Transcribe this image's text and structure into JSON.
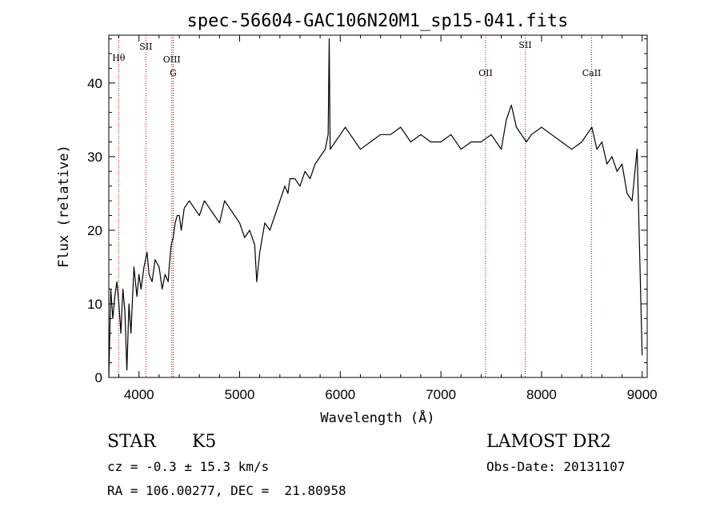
{
  "chart_data": {
    "type": "line",
    "title": "spec-56604-GAC106N20M1_sp15-041.fits",
    "xlabel": "Wavelength (Å)",
    "ylabel": "Flux (relative)",
    "xlim": [
      3700,
      9050
    ],
    "ylim": [
      0,
      46.5
    ],
    "xticks": [
      4000,
      5000,
      6000,
      7000,
      8000,
      9000
    ],
    "yticks": [
      0,
      10,
      20,
      30,
      40
    ],
    "grid": false,
    "series_color": "#000000",
    "line_marker_color": "#c00000",
    "series": [
      {
        "x": [
          3700,
          3720,
          3740,
          3760,
          3780,
          3800,
          3820,
          3840,
          3860,
          3880,
          3900,
          3920,
          3950,
          3980,
          4000,
          4020,
          4050,
          4080,
          4100,
          4130,
          4160,
          4200,
          4230,
          4260,
          4290,
          4300,
          4320,
          4340,
          4360,
          4380,
          4400,
          4420,
          4450,
          4500,
          4550,
          4600,
          4650,
          4700,
          4750,
          4800,
          4850,
          4900,
          4950,
          5000,
          5050,
          5100,
          5150,
          5170,
          5200,
          5250,
          5300,
          5350,
          5400,
          5450,
          5480,
          5500,
          5550,
          5600,
          5650,
          5700,
          5750,
          5800,
          5850,
          5880,
          5890,
          5900,
          5950,
          6000,
          6050,
          6100,
          6150,
          6200,
          6300,
          6400,
          6500,
          6600,
          6700,
          6800,
          6900,
          7000,
          7100,
          7200,
          7300,
          7400,
          7500,
          7550,
          7600,
          7650,
          7700,
          7750,
          7800,
          7850,
          7900,
          8000,
          8100,
          8200,
          8300,
          8400,
          8450,
          8500,
          8550,
          8600,
          8650,
          8700,
          8750,
          8800,
          8850,
          8900,
          8950,
          9000
        ],
        "y": [
          0,
          12,
          8,
          11,
          13,
          10,
          6,
          12,
          9,
          1,
          10,
          6,
          15,
          11,
          14,
          12,
          15,
          17,
          14,
          13,
          16,
          15,
          12,
          14,
          13,
          15,
          18,
          19,
          21,
          22,
          22,
          20,
          23,
          24,
          23,
          22,
          24,
          23,
          22,
          21,
          24,
          23,
          22,
          21,
          19,
          20,
          18,
          13,
          17,
          21,
          20,
          22,
          24,
          26,
          25,
          27,
          27,
          26,
          28,
          27,
          29,
          30,
          31,
          33,
          46,
          31,
          32,
          33,
          34,
          33,
          32,
          31,
          32,
          33,
          33,
          34,
          32,
          33,
          32,
          32,
          33,
          31,
          32,
          32,
          33,
          32,
          31,
          35,
          37,
          34,
          33,
          32,
          33,
          34,
          33,
          32,
          31,
          32,
          33,
          34,
          31,
          32,
          29,
          30,
          28,
          29,
          25,
          24,
          31,
          3
        ]
      }
    ],
    "line_markers": [
      {
        "label": "Hθ",
        "x": 3798
      },
      {
        "label": "SII",
        "x": 4069
      },
      {
        "label": "OIII",
        "x": 4326
      },
      {
        "label": "G",
        "x": 4340
      },
      {
        "label": "OII",
        "x": 7444
      },
      {
        "label": "SII",
        "x": 7838
      },
      {
        "label": "CaII",
        "x": 8498
      }
    ]
  },
  "info": {
    "class": "STAR",
    "subclass": "K5",
    "survey": "LAMOST DR2",
    "cz": "cz = -0.3 ± 15.3 km/s",
    "obs_date": "Obs-Date: 20131107",
    "radec": "RA = 106.00277, DEC =  21.80958"
  }
}
